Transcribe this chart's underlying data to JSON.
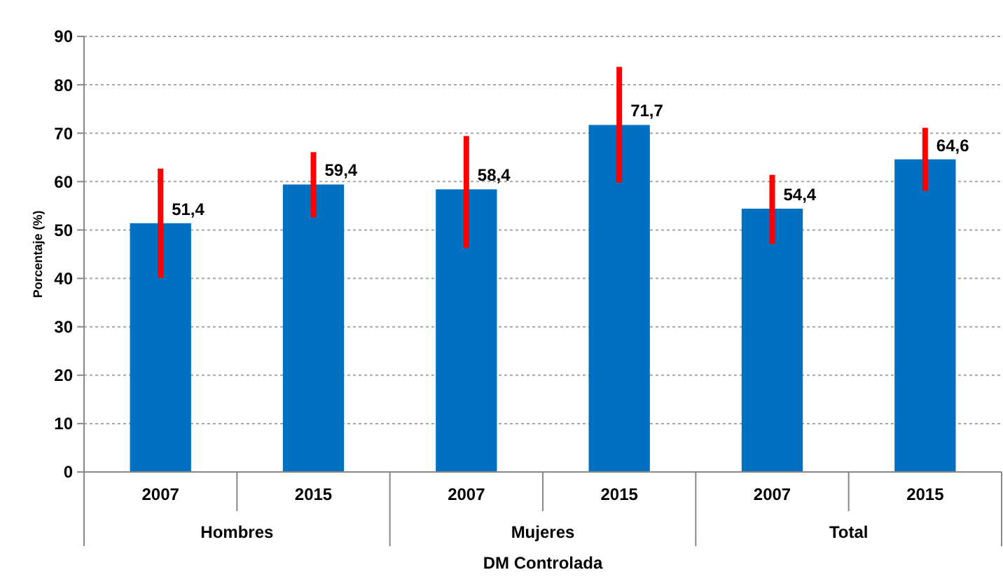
{
  "chart_data": {
    "type": "bar",
    "xlabel": "DM Controlada",
    "ylabel": "Porcentaje (%)",
    "categories": [
      "2007",
      "2015",
      "2007",
      "2015",
      "2007",
      "2015"
    ],
    "values": [
      51.4,
      59.4,
      58.4,
      71.7,
      54.4,
      64.6
    ],
    "value_labels": [
      "51,4",
      "59,4",
      "58,4",
      "71,7",
      "54,4",
      "64,6"
    ],
    "errors": [
      [
        40.1,
        62.7
      ],
      [
        52.6,
        66.1
      ],
      [
        46.3,
        69.4
      ],
      [
        59.8,
        83.7
      ],
      [
        47.1,
        61.4
      ],
      [
        58.1,
        71.1
      ]
    ],
    "color": "#0070c0",
    "annotations": [
      {
        "text": "Hombres"
      },
      {
        "text": "Mujeres"
      },
      {
        "text": "Total"
      }
    ],
    "ylim": [
      0,
      90
    ],
    "yticks": [
      0,
      10,
      20,
      30,
      40,
      50,
      60,
      70,
      80,
      90
    ],
    "grid": "y"
  }
}
